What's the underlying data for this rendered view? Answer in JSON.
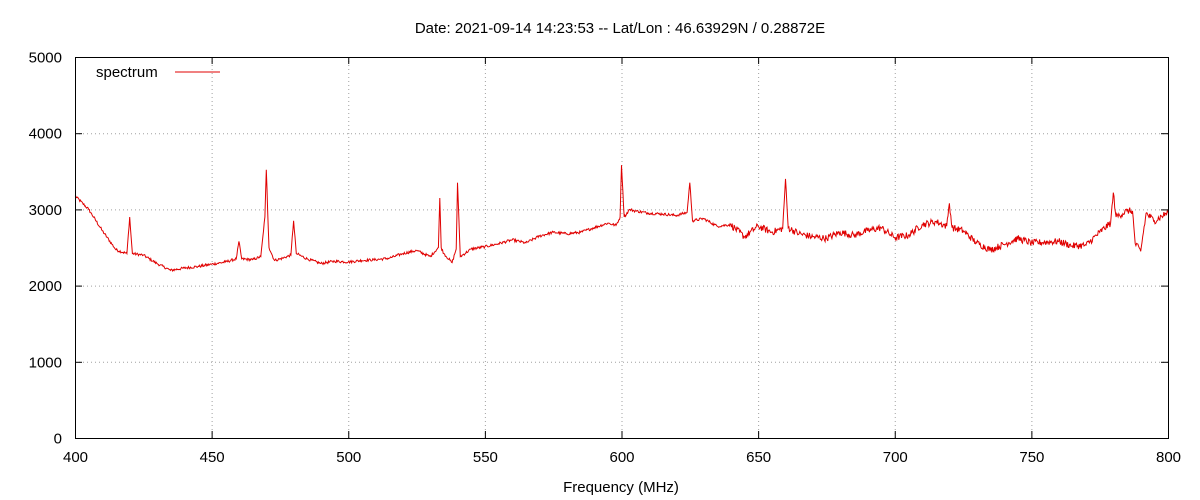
{
  "chart_data": {
    "type": "line",
    "title": "Date: 2021-09-14 14:23:53  --  Lat/Lon : 46.63929N / 0.28872E",
    "xlabel": "Frequency (MHz)",
    "ylabel": "",
    "xlim": [
      400,
      800
    ],
    "ylim": [
      0,
      5000
    ],
    "x_ticks": [
      "400",
      "450",
      "500",
      "550",
      "600",
      "650",
      "700",
      "750",
      "800"
    ],
    "y_ticks": [
      "0",
      "1000",
      "2000",
      "3000",
      "4000",
      "5000"
    ],
    "grid": true,
    "legend_position": "top-left",
    "series": [
      {
        "name": "spectrum",
        "color": "#e00000",
        "x": [
          400,
          405,
          410,
          415,
          419,
          420,
          421,
          425,
          430,
          435,
          440,
          445,
          450,
          455,
          459,
          460,
          461,
          465,
          468,
          469.5,
          470,
          471,
          473,
          476,
          479,
          480,
          481,
          485,
          490,
          495,
          500,
          505,
          510,
          515,
          520,
          525,
          530,
          533,
          533.5,
          534,
          535,
          538,
          539.5,
          540,
          541,
          545,
          550,
          555,
          560,
          565,
          570,
          575,
          580,
          585,
          590,
          595,
          598,
          599.5,
          600,
          601,
          603,
          605,
          610,
          615,
          620,
          624,
          625,
          626,
          630,
          635,
          640,
          645,
          650,
          655,
          659,
          660,
          661,
          665,
          670,
          675,
          680,
          685,
          690,
          695,
          700,
          705,
          710,
          715,
          719,
          720,
          721,
          725,
          730,
          735,
          740,
          745,
          750,
          755,
          760,
          765,
          770,
          775,
          779,
          780,
          781,
          785,
          787,
          788,
          790,
          792,
          795,
          800
        ],
        "values": [
          3180,
          3000,
          2720,
          2470,
          2420,
          2900,
          2420,
          2400,
          2290,
          2200,
          2230,
          2250,
          2280,
          2310,
          2350,
          2580,
          2350,
          2340,
          2380,
          2900,
          3520,
          2500,
          2330,
          2360,
          2400,
          2850,
          2420,
          2350,
          2290,
          2320,
          2310,
          2330,
          2340,
          2360,
          2420,
          2460,
          2380,
          2500,
          3150,
          2500,
          2420,
          2300,
          2480,
          3350,
          2380,
          2480,
          2510,
          2550,
          2600,
          2560,
          2650,
          2700,
          2680,
          2700,
          2760,
          2820,
          2790,
          2900,
          3580,
          2900,
          3000,
          2980,
          2950,
          2940,
          2920,
          2960,
          3350,
          2850,
          2880,
          2780,
          2800,
          2640,
          2780,
          2700,
          2750,
          3400,
          2760,
          2680,
          2640,
          2620,
          2700,
          2660,
          2720,
          2760,
          2630,
          2660,
          2800,
          2840,
          2780,
          3080,
          2760,
          2720,
          2560,
          2470,
          2540,
          2620,
          2560,
          2570,
          2580,
          2520,
          2530,
          2700,
          2820,
          3220,
          2900,
          2980,
          2980,
          2550,
          2450,
          2950,
          2850,
          2960
        ]
      }
    ]
  }
}
